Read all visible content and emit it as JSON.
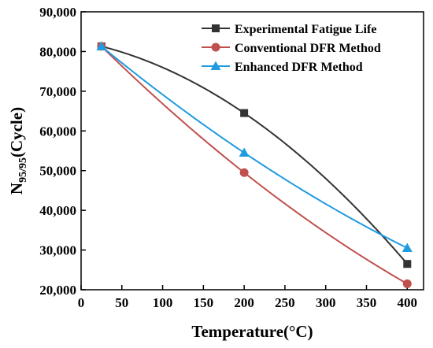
{
  "chart_data": {
    "type": "line",
    "xlabel": "Temperature(°C)",
    "ylabel_main": "N",
    "ylabel_sub": "95/95",
    "ylabel_rest": "(Cycle)",
    "xlim": [
      0,
      420
    ],
    "ylim": [
      20000,
      90000
    ],
    "x_ticks": [
      0,
      50,
      100,
      150,
      200,
      250,
      300,
      350,
      400
    ],
    "y_ticks": [
      20000,
      30000,
      40000,
      50000,
      60000,
      70000,
      80000,
      90000
    ],
    "y_tick_labels": [
      "20,000",
      "30,000",
      "40,000",
      "50,000",
      "60,000",
      "70,000",
      "80,000",
      "90,000"
    ],
    "legend_position": "top-right",
    "grid": false,
    "series": [
      {
        "name": "Experimental Fatigue Life",
        "color": "#333333",
        "marker": "square",
        "x": [
          25,
          200,
          400
        ],
        "y": [
          81300,
          64500,
          26500
        ]
      },
      {
        "name": "Conventional DFR Method",
        "color": "#c0504d",
        "marker": "circle",
        "x": [
          25,
          200,
          400
        ],
        "y": [
          81300,
          49500,
          21500
        ]
      },
      {
        "name": "Enhanced DFR Method",
        "color": "#1f9be0",
        "marker": "triangle",
        "x": [
          25,
          200,
          400
        ],
        "y": [
          81300,
          54500,
          30500
        ]
      }
    ]
  }
}
